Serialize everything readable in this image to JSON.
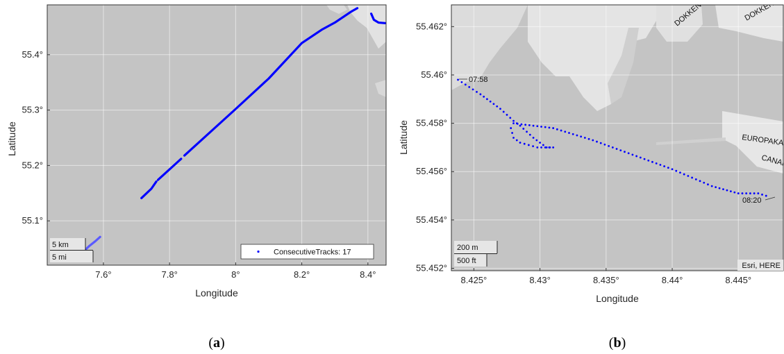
{
  "panels": [
    {
      "id": "a",
      "caption": "a",
      "xlabel": "Longitude",
      "ylabel": "Latitude",
      "xlim": [
        7.43,
        8.455
      ],
      "ylim": [
        55.02,
        55.49
      ],
      "xticks": [
        {
          "v": 7.6,
          "t": "7.6°"
        },
        {
          "v": 7.8,
          "t": "7.8°"
        },
        {
          "v": 8.0,
          "t": "8°"
        },
        {
          "v": 8.2,
          "t": "8.2°"
        },
        {
          "v": 8.4,
          "t": "8.4°"
        }
      ],
      "yticks": [
        {
          "v": 55.1,
          "t": "55.1°"
        },
        {
          "v": 55.2,
          "t": "55.2°"
        },
        {
          "v": 55.3,
          "t": "55.3°"
        },
        {
          "v": 55.4,
          "t": "55.4°"
        }
      ],
      "legend": "ConsecutiveTracks: 17",
      "scale_km": "5 km",
      "scale_mi": "5 mi",
      "tracks": [
        [
          [
            7.535,
            55.042
          ],
          [
            7.558,
            55.055
          ],
          [
            7.575,
            55.063
          ],
          [
            7.59,
            55.071
          ]
        ],
        [
          [
            7.715,
            55.141
          ],
          [
            7.745,
            55.158
          ],
          [
            7.76,
            55.171
          ]
        ],
        [
          [
            7.765,
            55.174
          ],
          [
            7.835,
            55.212
          ]
        ],
        [
          [
            7.845,
            55.218
          ],
          [
            8.0,
            55.302
          ],
          [
            8.1,
            55.357
          ],
          [
            8.2,
            55.421
          ],
          [
            8.26,
            55.445
          ],
          [
            8.3,
            55.458
          ],
          [
            8.35,
            55.478
          ],
          [
            8.368,
            55.484
          ]
        ],
        [
          [
            8.41,
            55.474
          ],
          [
            8.418,
            55.463
          ],
          [
            8.432,
            55.458
          ],
          [
            8.452,
            55.457
          ]
        ]
      ]
    },
    {
      "id": "b",
      "caption": "b",
      "xlabel": "Longitude",
      "ylabel": "Latitude",
      "xlim": [
        8.4233,
        8.4484
      ],
      "ylim": [
        55.4519,
        55.4629
      ],
      "xticks": [
        {
          "v": 8.425,
          "t": "8.425°"
        },
        {
          "v": 8.43,
          "t": "8.43°"
        },
        {
          "v": 8.435,
          "t": "8.435°"
        },
        {
          "v": 8.44,
          "t": "8.44°"
        },
        {
          "v": 8.445,
          "t": "8.445°"
        }
      ],
      "yticks": [
        {
          "v": 55.452,
          "t": "55.452°"
        },
        {
          "v": 55.454,
          "t": "55.454°"
        },
        {
          "v": 55.456,
          "t": "55.456°"
        },
        {
          "v": 55.458,
          "t": "55.458°"
        },
        {
          "v": 55.46,
          "t": "55.46°"
        },
        {
          "v": 55.462,
          "t": "55.462°"
        }
      ],
      "start_label": "07:58",
      "end_label": "08:20",
      "scale_m": "200 m",
      "scale_ft": "500 ft",
      "attribution": "Esri, HERE",
      "map_labels": [
        "DOKKEN",
        "DOKKEN",
        "EUROPAKAJ",
        "CANADA"
      ],
      "track": [
        [
          8.4238,
          55.4598
        ],
        [
          8.4255,
          55.4592
        ],
        [
          8.427,
          55.4586
        ],
        [
          8.428,
          55.4581
        ],
        [
          8.4285,
          55.4579
        ],
        [
          8.4295,
          55.4574
        ],
        [
          8.4305,
          55.457
        ],
        [
          8.431,
          55.457
        ],
        [
          8.4298,
          55.457
        ],
        [
          8.4285,
          55.4572
        ],
        [
          8.428,
          55.4574
        ],
        [
          8.4278,
          55.4578
        ],
        [
          8.428,
          55.458
        ],
        [
          8.4295,
          55.4579
        ],
        [
          8.431,
          55.4578
        ],
        [
          8.434,
          55.4573
        ],
        [
          8.437,
          55.4567
        ],
        [
          8.44,
          55.4561
        ],
        [
          8.443,
          55.4554
        ],
        [
          8.445,
          55.4551
        ],
        [
          8.4465,
          55.4551
        ],
        [
          8.4471,
          55.455
        ]
      ]
    }
  ]
}
